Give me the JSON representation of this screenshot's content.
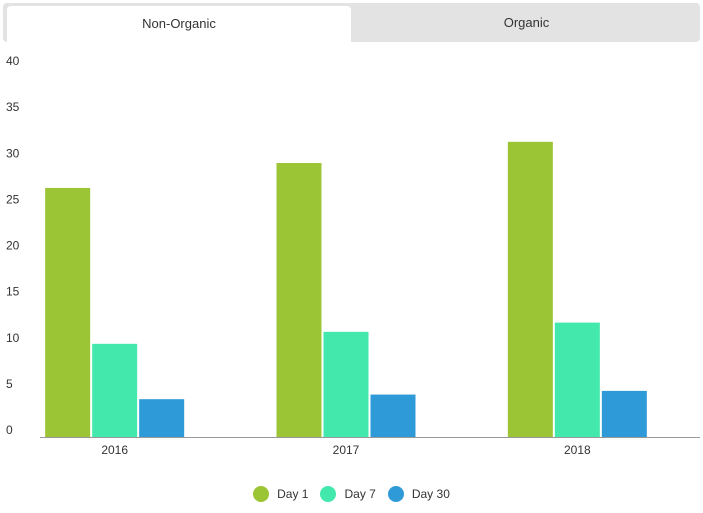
{
  "tabs": [
    {
      "label": "Non-Organic",
      "active": true
    },
    {
      "label": "Organic",
      "active": false
    }
  ],
  "chart_data": {
    "type": "bar",
    "categories": [
      "2016",
      "2017",
      "2018"
    ],
    "series": [
      {
        "name": "Day 1",
        "color": "#9bc534",
        "values": [
          27,
          29.7,
          32
        ]
      },
      {
        "name": "Day 7",
        "color": "#43e8ad",
        "values": [
          10.1,
          11.4,
          12.4
        ]
      },
      {
        "name": "Day 30",
        "color": "#2f9ad8",
        "values": [
          4.1,
          4.6,
          5.0
        ]
      }
    ],
    "ylim": [
      0,
      40
    ],
    "yticks": [
      0,
      5,
      10,
      15,
      20,
      25,
      30,
      35,
      40
    ],
    "title": "",
    "xlabel": "",
    "ylabel": "",
    "grid": false,
    "legend_position": "bottom-center"
  }
}
